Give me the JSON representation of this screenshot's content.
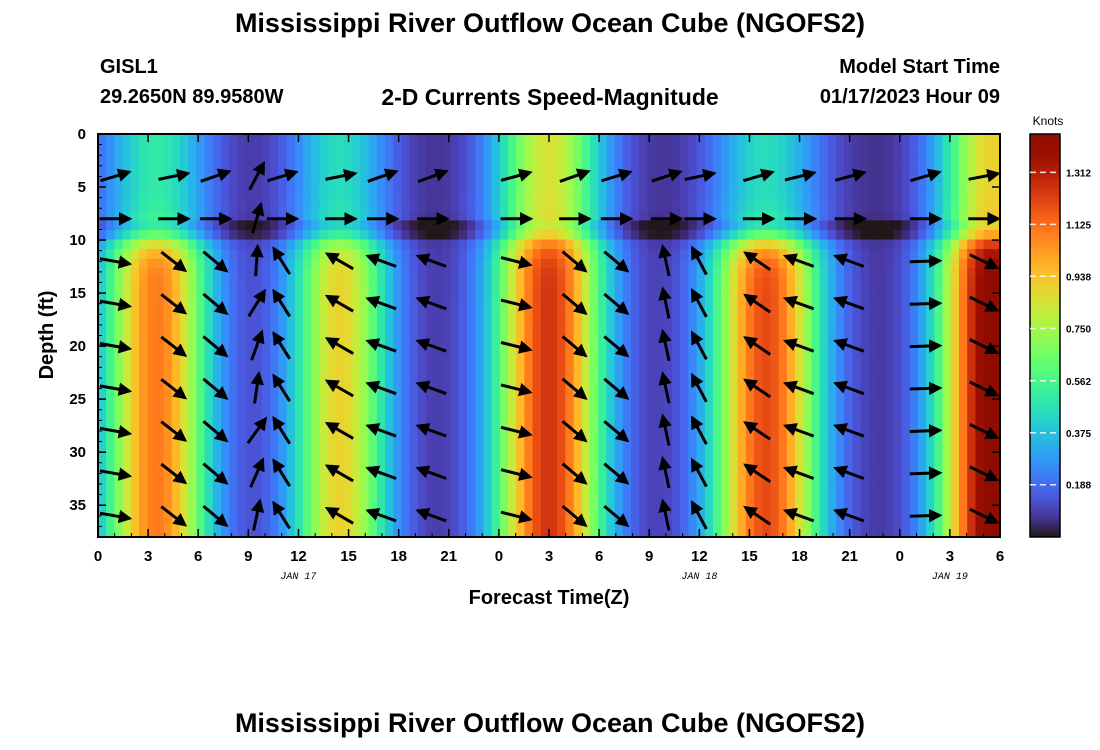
{
  "header": {
    "title": "Mississippi River Outflow Ocean Cube (NGOFS2)",
    "station": "GISL1",
    "coords": "29.2650N  89.9580W",
    "subtitle": "2-D Currents Speed-Magnitude",
    "model_start_label": "Model Start Time",
    "model_start_value": "01/17/2023 Hour 09"
  },
  "footer": {
    "title": "Mississippi River Outflow Ocean Cube (NGOFS2)"
  },
  "chart_data": {
    "type": "heatmap",
    "xlabel": "Forecast Time(Z)",
    "ylabel": "Depth (ft)",
    "xlim": [
      0,
      54
    ],
    "ylim": [
      0,
      38
    ],
    "y_inverted": true,
    "x_ticks": [
      0,
      3,
      6,
      9,
      12,
      15,
      18,
      21,
      24,
      27,
      30,
      33,
      36,
      39,
      42,
      45,
      48,
      51,
      54
    ],
    "x_tick_labels": [
      "0",
      "3",
      "6",
      "9",
      "12",
      "15",
      "18",
      "21",
      "0",
      "3",
      "6",
      "9",
      "12",
      "15",
      "18",
      "21",
      "0",
      "3",
      "6"
    ],
    "y_ticks": [
      0,
      5,
      10,
      15,
      20,
      25,
      30,
      35
    ],
    "y_tick_labels": [
      "0",
      "5",
      "10",
      "15",
      "20",
      "25",
      "30",
      "35"
    ],
    "date_labels": [
      {
        "x": 12,
        "text": "JAN 17"
      },
      {
        "x": 36,
        "text": "JAN 18"
      },
      {
        "x": 51,
        "text": "JAN 19"
      }
    ],
    "colorbar": {
      "label": "Knots",
      "min": 0,
      "max": 1.45,
      "ticks": [
        0.188,
        0.375,
        0.562,
        0.75,
        0.938,
        1.125,
        1.312
      ],
      "tick_labels": [
        "0.188",
        "0.375",
        "0.562",
        "0.750",
        "0.938",
        "1.125",
        "1.312"
      ],
      "colormap": "turbo"
    },
    "speed_peaks": [
      {
        "x": 3.5,
        "width": 3.2,
        "peak_deep": 1.05,
        "peak_shallow": 0.45,
        "shallow_dir_deg": 15
      },
      {
        "x": 14.5,
        "width": 3.0,
        "peak_deep": 0.85,
        "peak_shallow": 0.4,
        "shallow_dir_deg": 15
      },
      {
        "x": 27,
        "width": 3.3,
        "peak_deep": 1.2,
        "peak_shallow": 0.8,
        "shallow_dir_deg": 15
      },
      {
        "x": 40,
        "width": 3.3,
        "peak_deep": 1.15,
        "peak_shallow": 0.4,
        "shallow_dir_deg": 15
      },
      {
        "x": 53.5,
        "width": 3.2,
        "peak_deep": 1.4,
        "peak_shallow": 0.85,
        "shallow_dir_deg": 15
      }
    ],
    "slack_times": [
      9,
      21,
      33,
      47
    ],
    "interface_depth": 9,
    "vector_times": [
      1,
      4.5,
      7,
      9.5,
      11,
      14.5,
      17,
      20,
      25,
      28.5,
      31,
      34,
      36,
      39.5,
      42,
      45,
      49.5,
      53
    ]
  }
}
